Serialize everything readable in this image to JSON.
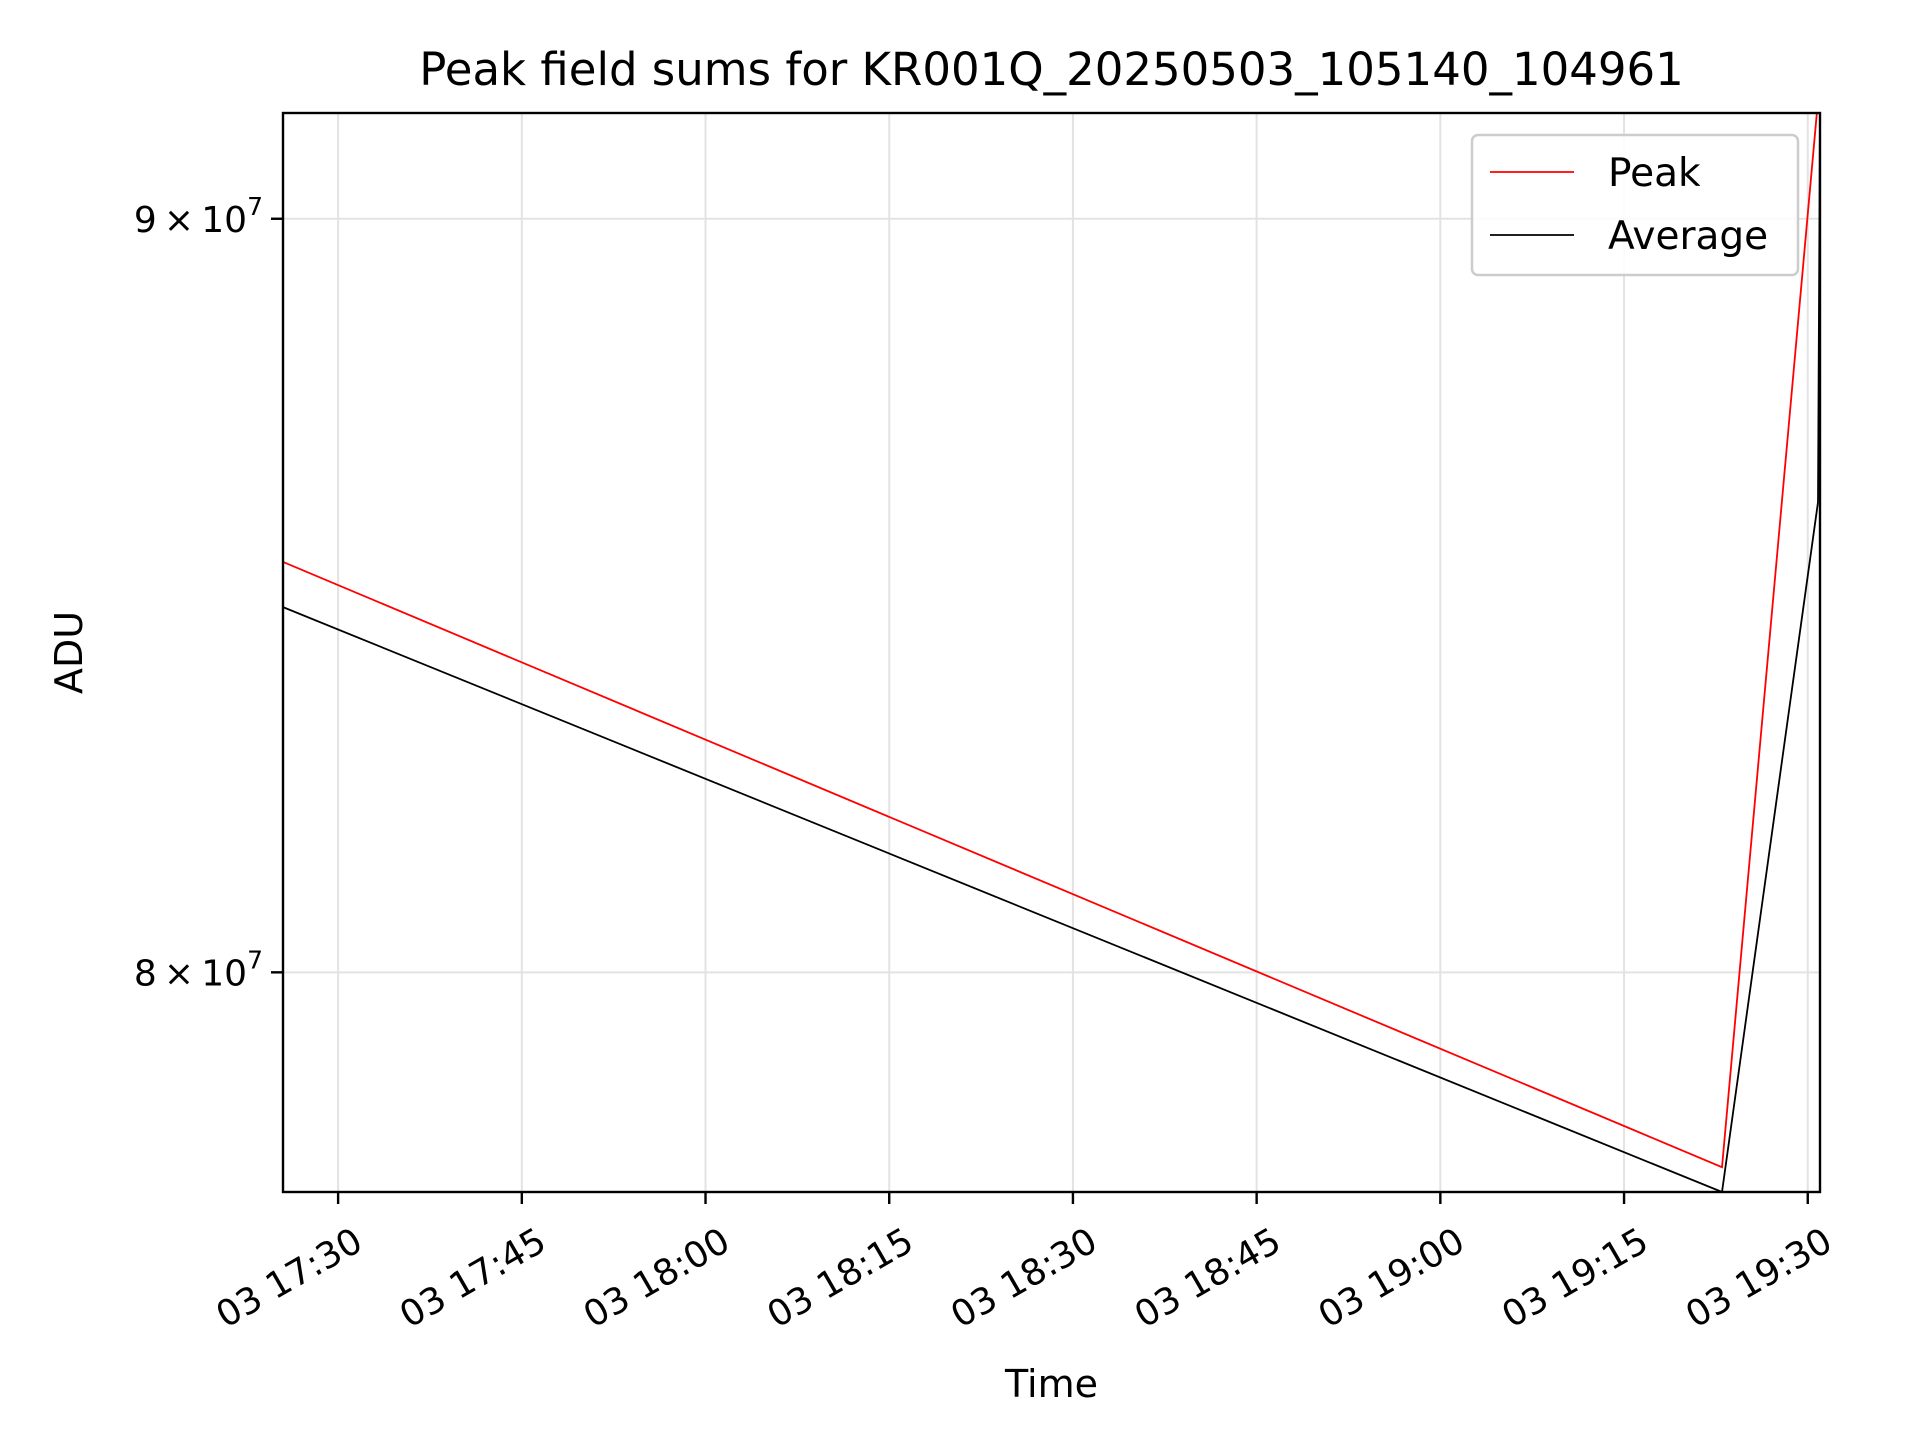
{
  "chart_data": {
    "type": "line",
    "title": "Peak field sums for KR001Q_20250503_105140_104961",
    "xlabel": "Time",
    "ylabel": "ADU",
    "y_scale": "log",
    "xlim": [
      "2025-05-03T17:25:30",
      "2025-05-03T19:31:00"
    ],
    "ylim": [
      77300000,
      91500000
    ],
    "x_ticks": [
      {
        "value": "2025-05-03T17:30:00",
        "label": "03 17:30"
      },
      {
        "value": "2025-05-03T17:45:00",
        "label": "03 17:45"
      },
      {
        "value": "2025-05-03T18:00:00",
        "label": "03 18:00"
      },
      {
        "value": "2025-05-03T18:15:00",
        "label": "03 18:15"
      },
      {
        "value": "2025-05-03T18:30:00",
        "label": "03 18:30"
      },
      {
        "value": "2025-05-03T18:45:00",
        "label": "03 18:45"
      },
      {
        "value": "2025-05-03T19:00:00",
        "label": "03 19:00"
      },
      {
        "value": "2025-05-03T19:15:00",
        "label": "03 19:15"
      },
      {
        "value": "2025-05-03T19:30:00",
        "label": "03 19:30"
      }
    ],
    "y_ticks": [
      {
        "value": 80000000,
        "mantissa": "8",
        "exponent": "7"
      },
      {
        "value": 90000000,
        "mantissa": "9",
        "exponent": "7"
      }
    ],
    "grid": true,
    "legend": {
      "placement": "top-right",
      "entries": [
        {
          "name": "Peak",
          "color": "#ff0000"
        },
        {
          "name": "Average",
          "color": "#000000"
        }
      ]
    },
    "series": [
      {
        "name": "Peak",
        "color": "#ff0000",
        "points": [
          {
            "x": "2025-05-03T17:25:30",
            "y": 85300000
          },
          {
            "x": "2025-05-03T19:23:00",
            "y": 77600000
          },
          {
            "x": "2025-05-03T19:31:00",
            "y": 92000000
          }
        ]
      },
      {
        "name": "Average",
        "color": "#000000",
        "points": [
          {
            "x": "2025-05-03T17:25:30",
            "y": 84700000
          },
          {
            "x": "2025-05-03T19:23:00",
            "y": 77300000
          },
          {
            "x": "2025-05-03T19:30:50",
            "y": 86100000
          },
          {
            "x": "2025-05-03T19:31:00",
            "y": 91500000
          }
        ]
      }
    ]
  }
}
